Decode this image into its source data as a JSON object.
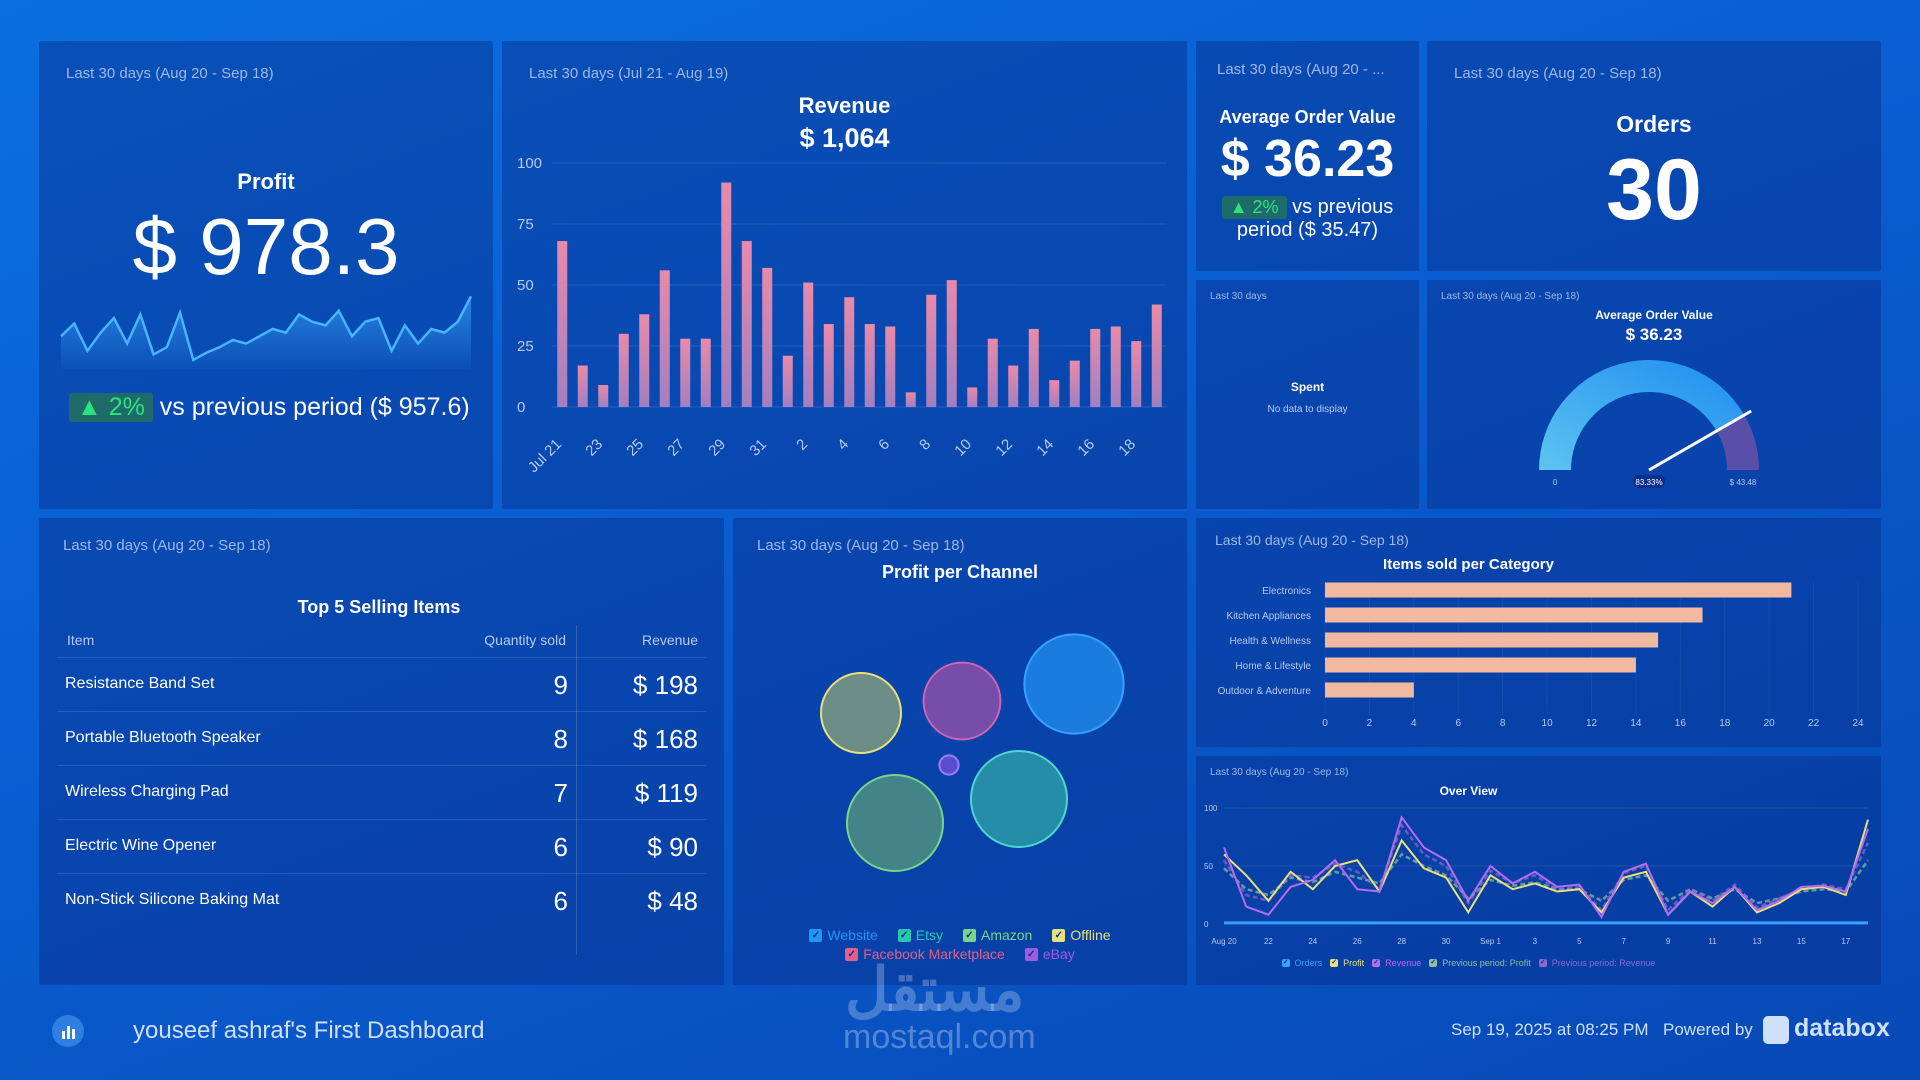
{
  "profit": {
    "period": "Last 30 days (Aug 20 - Sep 18)",
    "title": "Profit",
    "value": "$ 978.3",
    "change": "▲ 2%",
    "comparison": "vs previous period ($ 957.6)",
    "sparkline": [
      18,
      25,
      10,
      20,
      28,
      14,
      30,
      8,
      12,
      31,
      5,
      9,
      12,
      16,
      14,
      18,
      22,
      20,
      30,
      26,
      24,
      32,
      18,
      26,
      28,
      10,
      24,
      14,
      22,
      20,
      26,
      40
    ]
  },
  "revenue": {
    "period": "Last 30 days (Jul 21 - Aug 19)",
    "title": "Revenue",
    "value": "$ 1,064",
    "chart_data": {
      "type": "bar",
      "title": "Revenue",
      "ylim": [
        0,
        100
      ],
      "yticks": [
        0,
        25,
        50,
        75,
        100
      ],
      "xticks": [
        "Jul 21",
        "23",
        "25",
        "27",
        "29",
        "31",
        "2",
        "4",
        "6",
        "8",
        "10",
        "12",
        "14",
        "16",
        "18"
      ],
      "values": [
        68,
        17,
        9,
        30,
        38,
        56,
        28,
        28,
        92,
        68,
        57,
        21,
        51,
        34,
        45,
        34,
        33,
        6,
        46,
        52,
        8,
        28,
        17,
        32,
        11,
        19,
        32,
        33,
        27,
        42
      ]
    }
  },
  "aov": {
    "period": "Last 30 days (Aug 20 - ...",
    "title": "Average Order Value",
    "value": "$ 36.23",
    "change": "▲ 2%",
    "comparison_line1": "vs previous",
    "comparison_line2": "period ($ 35.47)"
  },
  "orders": {
    "period": "Last 30 days (Aug 20 - Sep 18)",
    "title": "Orders",
    "value": "30"
  },
  "spent": {
    "period": "Last 30 days",
    "title": "Spent",
    "empty": "No data to display"
  },
  "gauge": {
    "period": "Last 30 days (Aug 20 - Sep 18)",
    "title": "Average Order Value",
    "value": "$ 36.23",
    "min_label": "0",
    "max_label": "$ 43.48",
    "percent_label": "83.33%",
    "percent": 83.33
  },
  "top_items": {
    "period": "Last 30 days (Aug 20 - Sep 18)",
    "title": "Top 5 Selling Items",
    "headers": {
      "item": "Item",
      "qty": "Quantity sold",
      "revenue": "Revenue"
    },
    "rows": [
      {
        "item": "Resistance Band Set",
        "qty": "9",
        "revenue": "$ 198"
      },
      {
        "item": "Portable Bluetooth Speaker",
        "qty": "8",
        "revenue": "$ 168"
      },
      {
        "item": "Wireless Charging Pad",
        "qty": "7",
        "revenue": "$ 119"
      },
      {
        "item": "Electric Wine Opener",
        "qty": "6",
        "revenue": "$ 90"
      },
      {
        "item": "Non-Stick Silicone Baking Mat",
        "qty": "6",
        "revenue": "$ 48"
      }
    ]
  },
  "channel": {
    "period": "Last 30 days (Aug 20 - Sep 18)",
    "title": "Profit per Channel",
    "legend": [
      {
        "label": "Website",
        "color": "#2196f3"
      },
      {
        "label": "Etsy",
        "color": "#26c6b0"
      },
      {
        "label": "Amazon",
        "color": "#7bd389"
      },
      {
        "label": "Offline",
        "color": "#e8e07a"
      },
      {
        "label": "Facebook Marketplace",
        "color": "#e0608a"
      },
      {
        "label": "eBay",
        "color": "#9c5de0"
      }
    ],
    "bubbles": [
      {
        "name": "Website",
        "value": 62,
        "color": "#1f86e8",
        "stroke": "#3aa0ff"
      },
      {
        "name": "Etsy",
        "value": 60,
        "color": "#2a9aa8",
        "stroke": "#4fd6d0"
      },
      {
        "name": "Amazon",
        "value": 60,
        "color": "#4c8f82",
        "stroke": "#7bd389"
      },
      {
        "name": "Offline",
        "value": 50,
        "color": "#7f9a80",
        "stroke": "#e8e07a"
      },
      {
        "name": "Facebook Marketplace",
        "value": 48,
        "color": "#8a4fa8",
        "stroke": "#d064b0"
      },
      {
        "name": "eBay",
        "value": 12,
        "color": "#6a4fd8",
        "stroke": "#9c7df0"
      }
    ]
  },
  "category": {
    "period": "Last 30 days (Aug 20 - Sep 18)",
    "title": "Items sold per Category",
    "chart_data": {
      "type": "bar",
      "orientation": "horizontal",
      "title": "Items sold per Category",
      "categories": [
        "Electronics",
        "Kitchen Appliances",
        "Health & Wellness",
        "Home & Lifestyle",
        "Outdoor & Adventure"
      ],
      "values": [
        21,
        17,
        15,
        14,
        4
      ],
      "xlim": [
        0,
        24
      ],
      "xticks": [
        0,
        2,
        4,
        6,
        8,
        10,
        12,
        14,
        16,
        18,
        20,
        22,
        24
      ],
      "color": "#f0b9a0"
    }
  },
  "overview": {
    "period": "Last 30 days (Aug 20 - Sep 18)",
    "title": "Over View",
    "chart_data": {
      "type": "line",
      "title": "Over View",
      "ylim": [
        0,
        100
      ],
      "yticks": [
        0,
        50,
        100
      ],
      "xticks": [
        "Aug 20",
        "22",
        "24",
        "26",
        "28",
        "30",
        "Sep 1",
        "3",
        "5",
        "7",
        "9",
        "11",
        "13",
        "15",
        "17"
      ],
      "series": [
        {
          "name": "Orders",
          "color": "#3aa0ff",
          "values": [
            1,
            1,
            1,
            1,
            1,
            1,
            1,
            1,
            1,
            1,
            1,
            1,
            1,
            1,
            1,
            1,
            1,
            1,
            1,
            1,
            1,
            1,
            1,
            1,
            1,
            1,
            1,
            1,
            1,
            1
          ]
        },
        {
          "name": "Profit",
          "color": "#e8e07a",
          "values": [
            60,
            42,
            20,
            45,
            30,
            50,
            55,
            28,
            72,
            48,
            40,
            10,
            42,
            30,
            35,
            28,
            30,
            10,
            40,
            45,
            8,
            28,
            15,
            32,
            10,
            18,
            30,
            32,
            25,
            90
          ]
        },
        {
          "name": "Revenue",
          "color": "#b46cf0",
          "values": [
            66,
            15,
            8,
            32,
            38,
            55,
            30,
            28,
            92,
            66,
            55,
            20,
            50,
            35,
            45,
            32,
            34,
            6,
            45,
            52,
            8,
            28,
            18,
            32,
            12,
            20,
            32,
            33,
            28,
            82
          ]
        },
        {
          "name": "Previous period: Profit",
          "color": "#8fbf9f",
          "values": [
            48,
            30,
            25,
            40,
            36,
            45,
            40,
            35,
            60,
            50,
            42,
            22,
            38,
            33,
            36,
            30,
            30,
            20,
            38,
            42,
            20,
            30,
            22,
            30,
            18,
            22,
            28,
            30,
            28,
            55
          ]
        },
        {
          "name": "Previous period: Revenue",
          "color": "#8a6ad0",
          "values": [
            55,
            25,
            20,
            42,
            40,
            52,
            45,
            30,
            85,
            60,
            50,
            18,
            46,
            35,
            42,
            30,
            32,
            12,
            44,
            50,
            12,
            30,
            20,
            34,
            14,
            22,
            30,
            34,
            30,
            70
          ]
        }
      ]
    }
  },
  "footer": {
    "dashboard_name": "youseef ashraf's First Dashboard",
    "timestamp": "Sep 19, 2025 at 08:25 PM",
    "powered_by": "Powered by",
    "brand": "databox",
    "watermark_arabic": "مستقل",
    "watermark_url": "mostaql.com"
  }
}
